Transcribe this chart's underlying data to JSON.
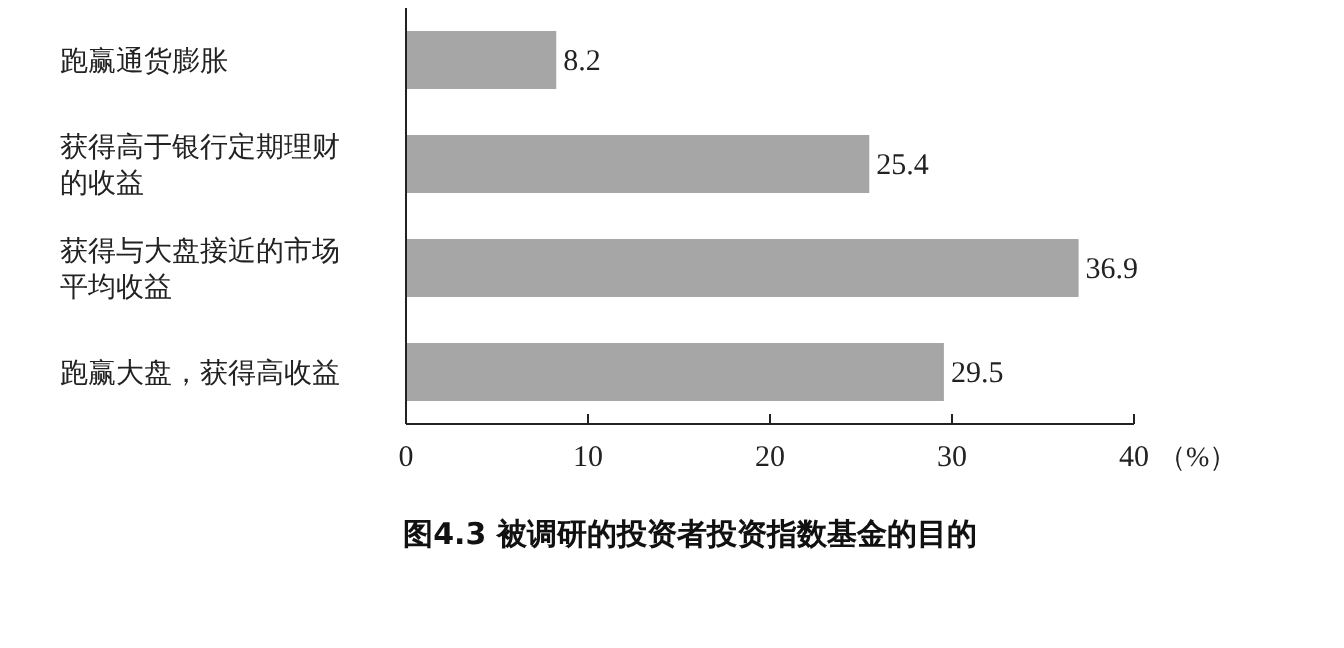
{
  "chart_data": {
    "type": "bar",
    "orientation": "horizontal",
    "title": "图4.3 被调研的投资者投资指数基金的目的",
    "xlabel": "（%）",
    "categories": [
      "跑赢通货膨胀",
      "获得高于银行定期理财的收益",
      "获得与大盘接近的市场平均收益",
      "跑赢大盘，获得高收益"
    ],
    "values": [
      8.2,
      25.4,
      36.9,
      29.5
    ],
    "color": "#a6a6a6",
    "data_labels": true,
    "xlim": [
      0,
      40
    ],
    "xticks": [
      0,
      10,
      20,
      30,
      40
    ],
    "grid": false
  }
}
